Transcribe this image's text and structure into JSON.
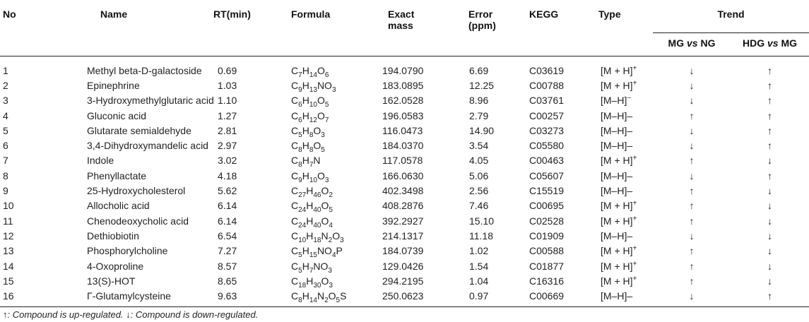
{
  "headers": {
    "no": "No",
    "name": "Name",
    "rt": "RT(min)",
    "formula": "Formula",
    "exact_mass_1": "Exact",
    "exact_mass_2": "mass",
    "error_1": "Error",
    "error_2": "(ppm)",
    "kegg": "KEGG",
    "type": "Type",
    "trend": "Trend",
    "mg_vs_ng_a": "MG ",
    "mg_vs_ng_vs": "vs",
    "mg_vs_ng_b": " NG",
    "hdg_vs_mg_a": "HDG ",
    "hdg_vs_mg_vs": "vs",
    "hdg_vs_mg_b": " MG"
  },
  "rows": [
    {
      "no": "1",
      "name": "Methyl beta-D-galactoside",
      "rt": "0.69",
      "formula": [
        [
          "C",
          ""
        ],
        [
          "7",
          ""
        ],
        [
          "H",
          ""
        ],
        [
          "14",
          ""
        ],
        [
          "O",
          ""
        ],
        [
          "6",
          ""
        ]
      ],
      "formula_text": "C7H14O6",
      "mass": "194.0790",
      "error": "6.69",
      "kegg": "C03619",
      "type": "[M + H]",
      "type_sup": "+",
      "mg_ng": "↓",
      "hdg_mg": "↑"
    },
    {
      "no": "2",
      "name": "Epinephrine",
      "rt": "1.03",
      "formula_text": "C9H13NO3",
      "mass": "183.0895",
      "error": "12.25",
      "kegg": "C00788",
      "type": "[M + H]",
      "type_sup": "+",
      "mg_ng": "↓",
      "hdg_mg": "↑"
    },
    {
      "no": "3",
      "name": "3-Hydroxymethylglutaric acid",
      "rt": "1.10",
      "formula_text": "C6H10O5",
      "mass": "162.0528",
      "error": "8.96",
      "kegg": "C03761",
      "type": "[M–H]",
      "type_sup": "−",
      "mg_ng": "↓",
      "hdg_mg": "↑"
    },
    {
      "no": "4",
      "name": "Gluconic acid",
      "rt": "1.27",
      "formula_text": "C6H12O7",
      "mass": "196.0583",
      "error": "2.79",
      "kegg": "C00257",
      "type": "[M–H]–",
      "type_sup": "",
      "mg_ng": "↑",
      "hdg_mg": "↑"
    },
    {
      "no": "5",
      "name": "Glutarate semialdehyde",
      "rt": "2.81",
      "formula_text": "C5H8O3",
      "mass": "116.0473",
      "error": "14.90",
      "kegg": "C03273",
      "type": "[M–H]–",
      "type_sup": "",
      "mg_ng": "↓",
      "hdg_mg": "↑"
    },
    {
      "no": "6",
      "name": " 3,4-Dihydroxymandelic acid",
      "rt": "2.97",
      "formula_text": "C8H8O5",
      "mass": "184.0370",
      "error": "3.54",
      "kegg": "C05580",
      "type": "[M–H]–",
      "type_sup": "",
      "mg_ng": "↓",
      "hdg_mg": "↑"
    },
    {
      "no": "7",
      "name": "Indole",
      "rt": "3.02",
      "formula_text": "C8H7N",
      "mass": "117.0578",
      "error": "4.05",
      "kegg": "C00463",
      "type": "[M + H]",
      "type_sup": "+",
      "mg_ng": "↑",
      "hdg_mg": "↓"
    },
    {
      "no": "8",
      "name": "Phenyllactate",
      "rt": "4.18",
      "formula_text": "C9H10O3",
      "mass": "166.0630",
      "error": "5.06",
      "kegg": "C05607",
      "type": "[M–H]–",
      "type_sup": "",
      "mg_ng": "↓",
      "hdg_mg": "↑"
    },
    {
      "no": "9",
      "name": "25-Hydroxycholesterol",
      "rt": "5.62",
      "formula_text": "C27H46O2",
      "mass": "402.3498",
      "error": "2.56",
      "kegg": "C15519",
      "type": "[M–H]–",
      "type_sup": "",
      "mg_ng": "↑",
      "hdg_mg": "↓"
    },
    {
      "no": "10",
      "name": "Allocholic acid",
      "rt": "6.14",
      "formula_text": "C24H40O5",
      "mass": "408.2876",
      "error": "7.46",
      "kegg": "C00695",
      "type": "[M + H]",
      "type_sup": "+",
      "mg_ng": "↑",
      "hdg_mg": "↓"
    },
    {
      "no": "11",
      "name": "Chenodeoxycholic acid",
      "rt": "6.14",
      "formula_text": "C24H40O4",
      "mass": "392.2927",
      "error": "15.10",
      "kegg": "C02528",
      "type": "[M + H]",
      "type_sup": "+",
      "mg_ng": "↑",
      "hdg_mg": "↓"
    },
    {
      "no": "12",
      "name": "Dethiobiotin",
      "rt": "6.54",
      "formula_text": "C10H18N2O3",
      "mass": "214.1317",
      "error": "11.18",
      "kegg": "C01909",
      "type": "[M–H]–",
      "type_sup": "",
      "mg_ng": "↓",
      "hdg_mg": "↓"
    },
    {
      "no": "13",
      "name": "Phosphorylcholine",
      "rt": "7.27",
      "formula_text": "C5H15NO4P",
      "mass": "184.0739",
      "error": "1.02",
      "kegg": "C00588",
      "type": "[M + H]",
      "type_sup": "+",
      "mg_ng": "↑",
      "hdg_mg": "↓"
    },
    {
      "no": "14",
      "name": "4-Oxoproline",
      "rt": "8.57",
      "formula_text": "C5H7NO3",
      "mass": "129.0426",
      "error": "1.54",
      "kegg": "C01877",
      "type": "[M + H]",
      "type_sup": "+",
      "mg_ng": "↑",
      "hdg_mg": "↓"
    },
    {
      "no": "15",
      "name": "13(S)-HOT",
      "rt": "8.65",
      "formula_text": "C18H30O3",
      "mass": "294.2195",
      "error": "1.04",
      "kegg": "C16316",
      "type": "[M + H]",
      "type_sup": "+",
      "mg_ng": "↑",
      "hdg_mg": "↓"
    },
    {
      "no": "16",
      "name": "Γ-Glutamylcysteine",
      "rt": "9.63",
      "formula_text": "C8H14N2O5S",
      "mass": "250.0623",
      "error": "0.97",
      "kegg": "C00669",
      "type": "[M–H]–",
      "type_sup": "",
      "mg_ng": "↓",
      "hdg_mg": "↑"
    }
  ],
  "footnote": "↑: Compound is up-regulated. ↓: Compound is down-regulated."
}
